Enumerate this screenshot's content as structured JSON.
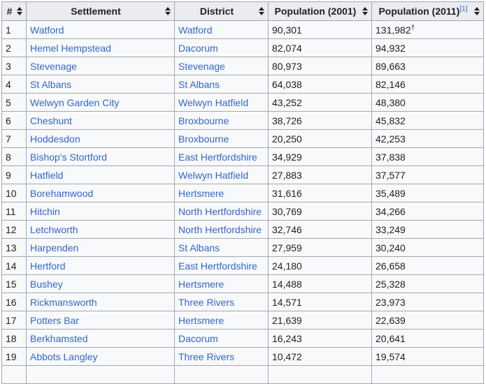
{
  "table": {
    "headers": {
      "num": "#",
      "settlement": "Settlement",
      "district": "District",
      "pop2001": "Population (2001)",
      "pop2011": "Population (2011)",
      "pop2011_ref": "[1]"
    },
    "rows": [
      {
        "num": "1",
        "settlement": "Watford",
        "district": "Watford",
        "pop2001": "90,301",
        "pop2011": "131,982",
        "mark": "†"
      },
      {
        "num": "2",
        "settlement": "Hemel Hempstead",
        "district": "Dacorum",
        "pop2001": "82,074",
        "pop2011": "94,932"
      },
      {
        "num": "3",
        "settlement": "Stevenage",
        "district": "Stevenage",
        "pop2001": "80,973",
        "pop2011": "89,663"
      },
      {
        "num": "4",
        "settlement": "St Albans",
        "district": "St Albans",
        "pop2001": "64,038",
        "pop2011": "82,146"
      },
      {
        "num": "5",
        "settlement": "Welwyn Garden City",
        "district": "Welwyn Hatfield",
        "pop2001": "43,252",
        "pop2011": "48,380"
      },
      {
        "num": "6",
        "settlement": "Cheshunt",
        "district": "Broxbourne",
        "pop2001": "38,726",
        "pop2011": "45,832"
      },
      {
        "num": "7",
        "settlement": "Hoddesdon",
        "district": "Broxbourne",
        "pop2001": "20,250",
        "pop2011": "42,253"
      },
      {
        "num": "8",
        "settlement": "Bishop's Stortford",
        "district": "East Hertfordshire",
        "pop2001": "34,929",
        "pop2011": "37,838"
      },
      {
        "num": "9",
        "settlement": "Hatfield",
        "district": "Welwyn Hatfield",
        "pop2001": "27,883",
        "pop2011": "37,577"
      },
      {
        "num": "10",
        "settlement": "Borehamwood",
        "district": "Hertsmere",
        "pop2001": "31,616",
        "pop2011": "35,489"
      },
      {
        "num": "11",
        "settlement": "Hitchin",
        "district": "North Hertfordshire",
        "pop2001": "30,769",
        "pop2011": "34,266"
      },
      {
        "num": "12",
        "settlement": "Letchworth",
        "district": "North Hertfordshire",
        "pop2001": "32,746",
        "pop2011": "33,249"
      },
      {
        "num": "13",
        "settlement": "Harpenden",
        "district": "St Albans",
        "pop2001": "27,959",
        "pop2011": "30,240"
      },
      {
        "num": "14",
        "settlement": "Hertford",
        "district": "East Hertfordshire",
        "pop2001": "24,180",
        "pop2011": "26,658"
      },
      {
        "num": "15",
        "settlement": "Bushey",
        "district": "Hertsmere",
        "pop2001": "14,488",
        "pop2011": "25,328"
      },
      {
        "num": "16",
        "settlement": "Rickmansworth",
        "district": "Three Rivers",
        "pop2001": "14,571",
        "pop2011": "23,973"
      },
      {
        "num": "17",
        "settlement": "Potters Bar",
        "district": "Hertsmere",
        "pop2001": "21,639",
        "pop2011": "22,639"
      },
      {
        "num": "18",
        "settlement": "Berkhamsted",
        "district": "Dacorum",
        "pop2001": "16,243",
        "pop2011": "20,641"
      },
      {
        "num": "19",
        "settlement": "Abbots Langley",
        "district": "Three Rivers",
        "pop2001": "10,472",
        "pop2011": "19,574"
      },
      {
        "num": "",
        "settlement": "",
        "district": "",
        "pop2001": "",
        "pop2011": ""
      }
    ]
  }
}
